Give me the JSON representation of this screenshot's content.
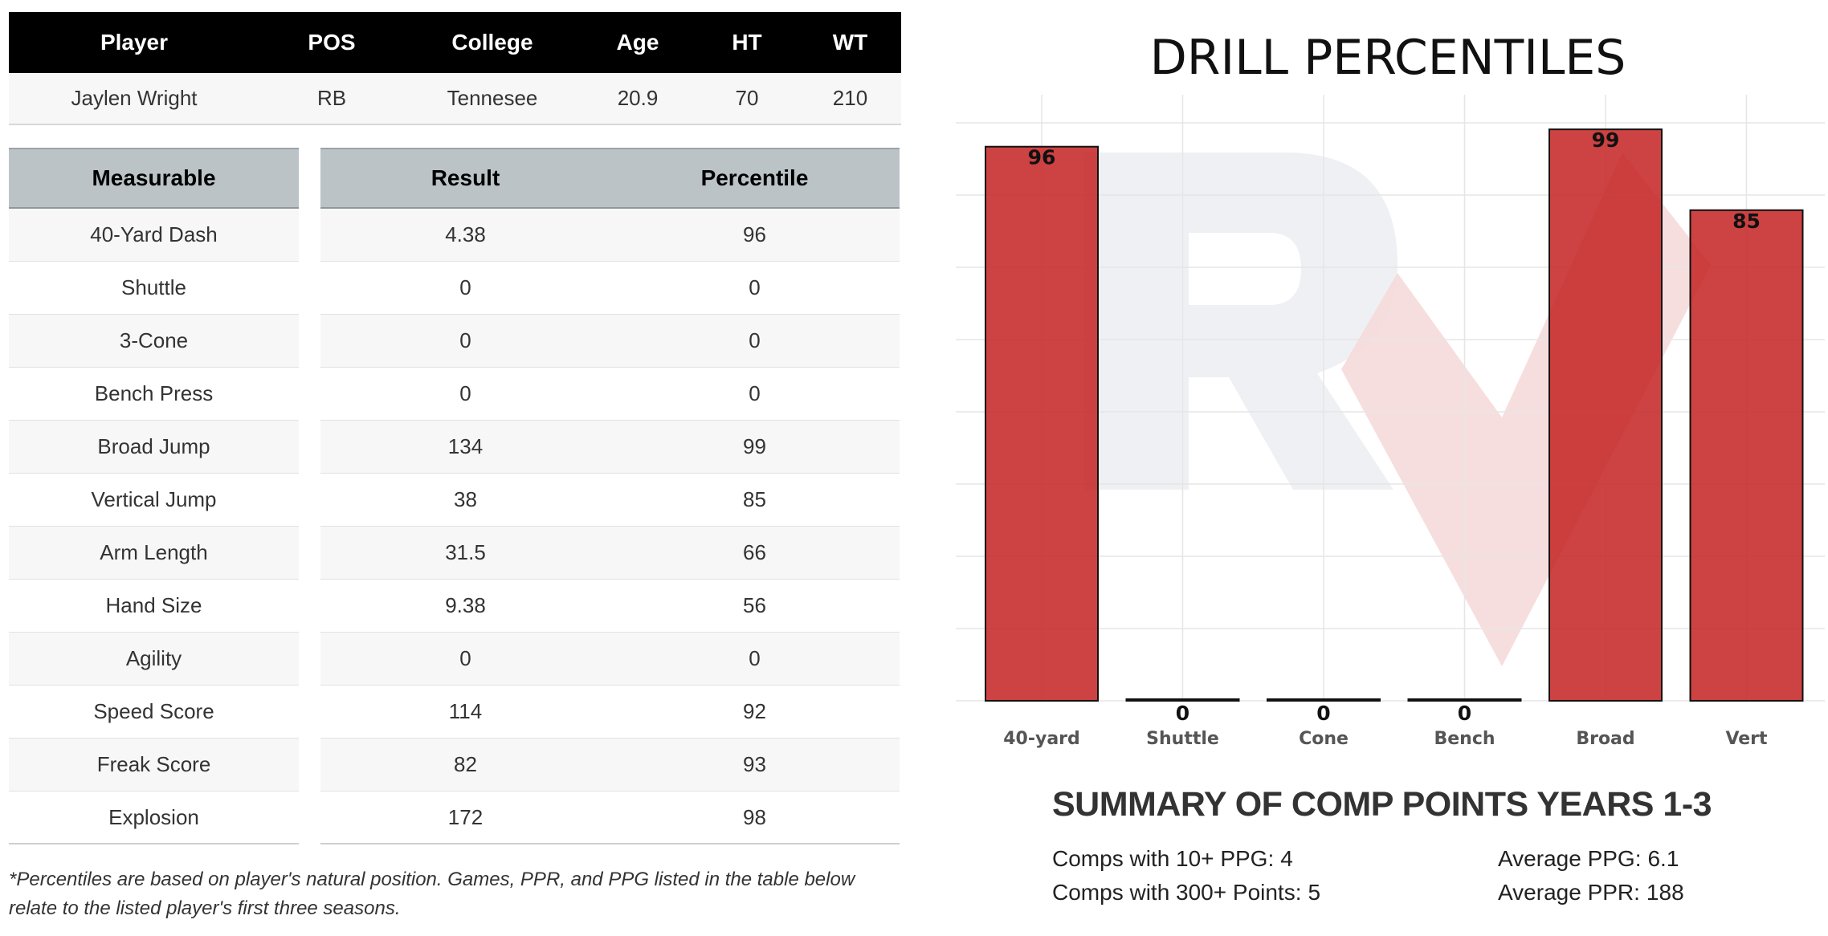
{
  "player_table": {
    "headers": [
      "Player",
      "POS",
      "College",
      "Age",
      "HT",
      "WT"
    ],
    "row": [
      "Jaylen Wright",
      "RB",
      "Tennesee",
      "20.9",
      "70",
      "210"
    ]
  },
  "measurables": {
    "headers": {
      "measurable": "Measurable",
      "result": "Result",
      "percentile": "Percentile"
    },
    "rows": [
      {
        "name": "40-Yard Dash",
        "result": "4.38",
        "percentile": "96"
      },
      {
        "name": "Shuttle",
        "result": "0",
        "percentile": "0"
      },
      {
        "name": "3-Cone",
        "result": "0",
        "percentile": "0"
      },
      {
        "name": "Bench Press",
        "result": "0",
        "percentile": "0"
      },
      {
        "name": "Broad Jump",
        "result": "134",
        "percentile": "99"
      },
      {
        "name": "Vertical Jump",
        "result": "38",
        "percentile": "85"
      },
      {
        "name": "Arm Length",
        "result": "31.5",
        "percentile": "66"
      },
      {
        "name": "Hand Size",
        "result": "9.38",
        "percentile": "56"
      },
      {
        "name": "Agility",
        "result": "0",
        "percentile": "0"
      },
      {
        "name": "Speed Score",
        "result": "114",
        "percentile": "92"
      },
      {
        "name": "Freak Score",
        "result": "82",
        "percentile": "93"
      },
      {
        "name": "Explosion",
        "result": "172",
        "percentile": "98"
      }
    ]
  },
  "footnote": "*Percentiles are based on player's natural position. Games, PPR, and PPG listed in the table below relate to the listed player's first three seasons.",
  "chart_data": {
    "type": "bar",
    "title": "DRILL PERCENTILES",
    "categories": [
      "40-yard",
      "Shuttle",
      "Cone",
      "Bench",
      "Broad",
      "Vert"
    ],
    "values": [
      96,
      0,
      0,
      0,
      99,
      85
    ],
    "ylim": [
      0,
      105
    ],
    "grid": true,
    "bar_color": "#c62828",
    "watermark": "RV logo"
  },
  "summary": {
    "title": "SUMMARY OF COMP POINTS YEARS 1-3",
    "stats": [
      {
        "label": "Comps with 10+ PPG:",
        "value": "4"
      },
      {
        "label": "Comps with 300+ Points:",
        "value": "5"
      },
      {
        "label": "Average PPG:",
        "value": "6.1"
      },
      {
        "label": "Average PPR:",
        "value": "188"
      }
    ]
  }
}
